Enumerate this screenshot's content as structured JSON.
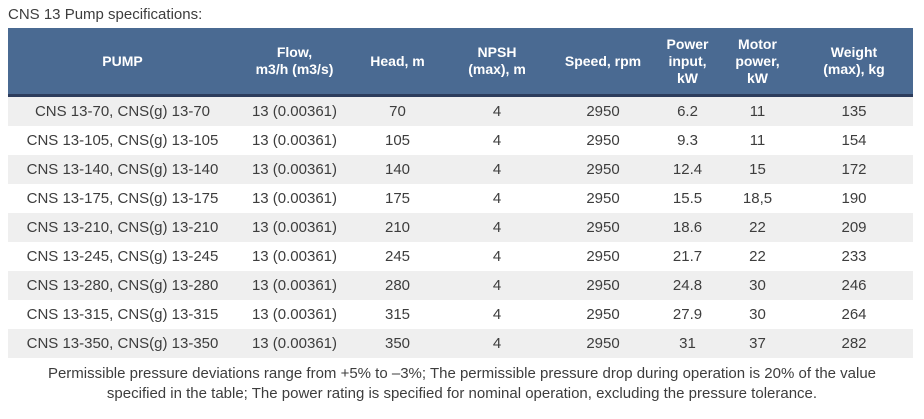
{
  "page": {
    "title": "CNS 13 Pump specifications:",
    "footnote": "Permissible pressure deviations range from +5% to –3%; The permissible pressure drop during operation is 20% of the value specified in the table; The power rating is specified for nominal operation, excluding the pressure tolerance."
  },
  "table": {
    "columns": [
      "PUMP",
      "Flow,\nm3/h (m3/s)",
      "Head, m",
      "NPSH\n(max), m",
      "Speed, rpm",
      "Power\ninput,\nkW",
      "Motor\npower,\nkW",
      "Weight\n(max), kg"
    ],
    "rows": [
      [
        "CNS 13-70, CNS(g) 13-70",
        "13 (0.00361)",
        "70",
        "4",
        "2950",
        "6.2",
        "11",
        "135"
      ],
      [
        "CNS 13-105, CNS(g) 13-105",
        "13 (0.00361)",
        "105",
        "4",
        "2950",
        "9.3",
        "11",
        "154"
      ],
      [
        "CNS 13-140, CNS(g) 13-140",
        "13 (0.00361)",
        "140",
        "4",
        "2950",
        "12.4",
        "15",
        "172"
      ],
      [
        "CNS 13-175, CNS(g) 13-175",
        "13 (0.00361)",
        "175",
        "4",
        "2950",
        "15.5",
        "18,5",
        "190"
      ],
      [
        "CNS 13-210, CNS(g) 13-210",
        "13 (0.00361)",
        "210",
        "4",
        "2950",
        "18.6",
        "22",
        "209"
      ],
      [
        "CNS 13-245, CNS(g) 13-245",
        "13 (0.00361)",
        "245",
        "4",
        "2950",
        "21.7",
        "22",
        "233"
      ],
      [
        "CNS 13-280, CNS(g) 13-280",
        "13 (0.00361)",
        "280",
        "4",
        "2950",
        "24.8",
        "30",
        "246"
      ],
      [
        "CNS 13-315, CNS(g) 13-315",
        "13 (0.00361)",
        "315",
        "4",
        "2950",
        "27.9",
        "30",
        "264"
      ],
      [
        "CNS 13-350, CNS(g) 13-350",
        "13 (0.00361)",
        "350",
        "4",
        "2950",
        "31",
        "37",
        "282"
      ]
    ]
  },
  "colors": {
    "header_bg": "#4a6a92",
    "header_border": "#2c3c5c",
    "header_text": "#ffffff",
    "row_alt": "#efefef",
    "text_color": "#3d3d3d"
  }
}
